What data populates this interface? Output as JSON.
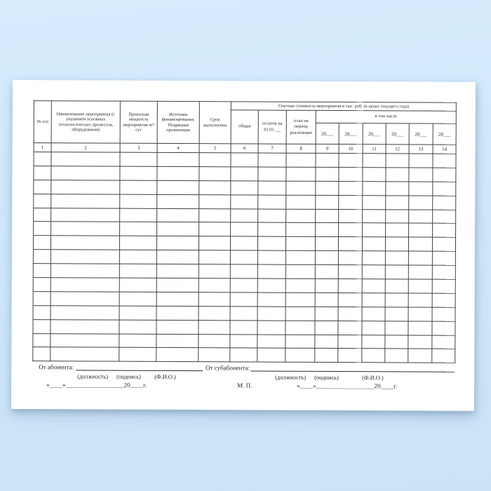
{
  "page": {
    "background_top": "#d7edfe",
    "background_bottom": "#cce3f7",
    "paper_color": "#ffffff"
  },
  "table": {
    "summary_header": "Сметная стоимость мероприятия в тыс. руб. (в ценах текущего года)",
    "including_header": "в том числе",
    "year_label": "20___",
    "columns": [
      "№ п/п",
      "Наименование мероприятия (с указанием основных технологических процессов, оборудования)",
      "Проектная мощность мероприятия м³/сут",
      "Источник финансирования. Подрядная организация",
      "Срок выполнения",
      "общая",
      "остаток на 01.01. __",
      "план на период реализации"
    ],
    "column_numbers": [
      "1",
      "2",
      "3",
      "4",
      "5",
      "6",
      "7",
      "8",
      "9",
      "10",
      "11",
      "12",
      "13",
      "14"
    ],
    "body_row_count": 15
  },
  "footer": {
    "from_abonent_label": "От абонента:",
    "from_subabonent_label": "От субабонента:",
    "position_caption": "(должность)",
    "signature_caption": "(подпись)",
    "name_caption": "(Ф.И.О.)",
    "seal_label": "М. П.",
    "date_blank": "«____»__________________20____г."
  }
}
